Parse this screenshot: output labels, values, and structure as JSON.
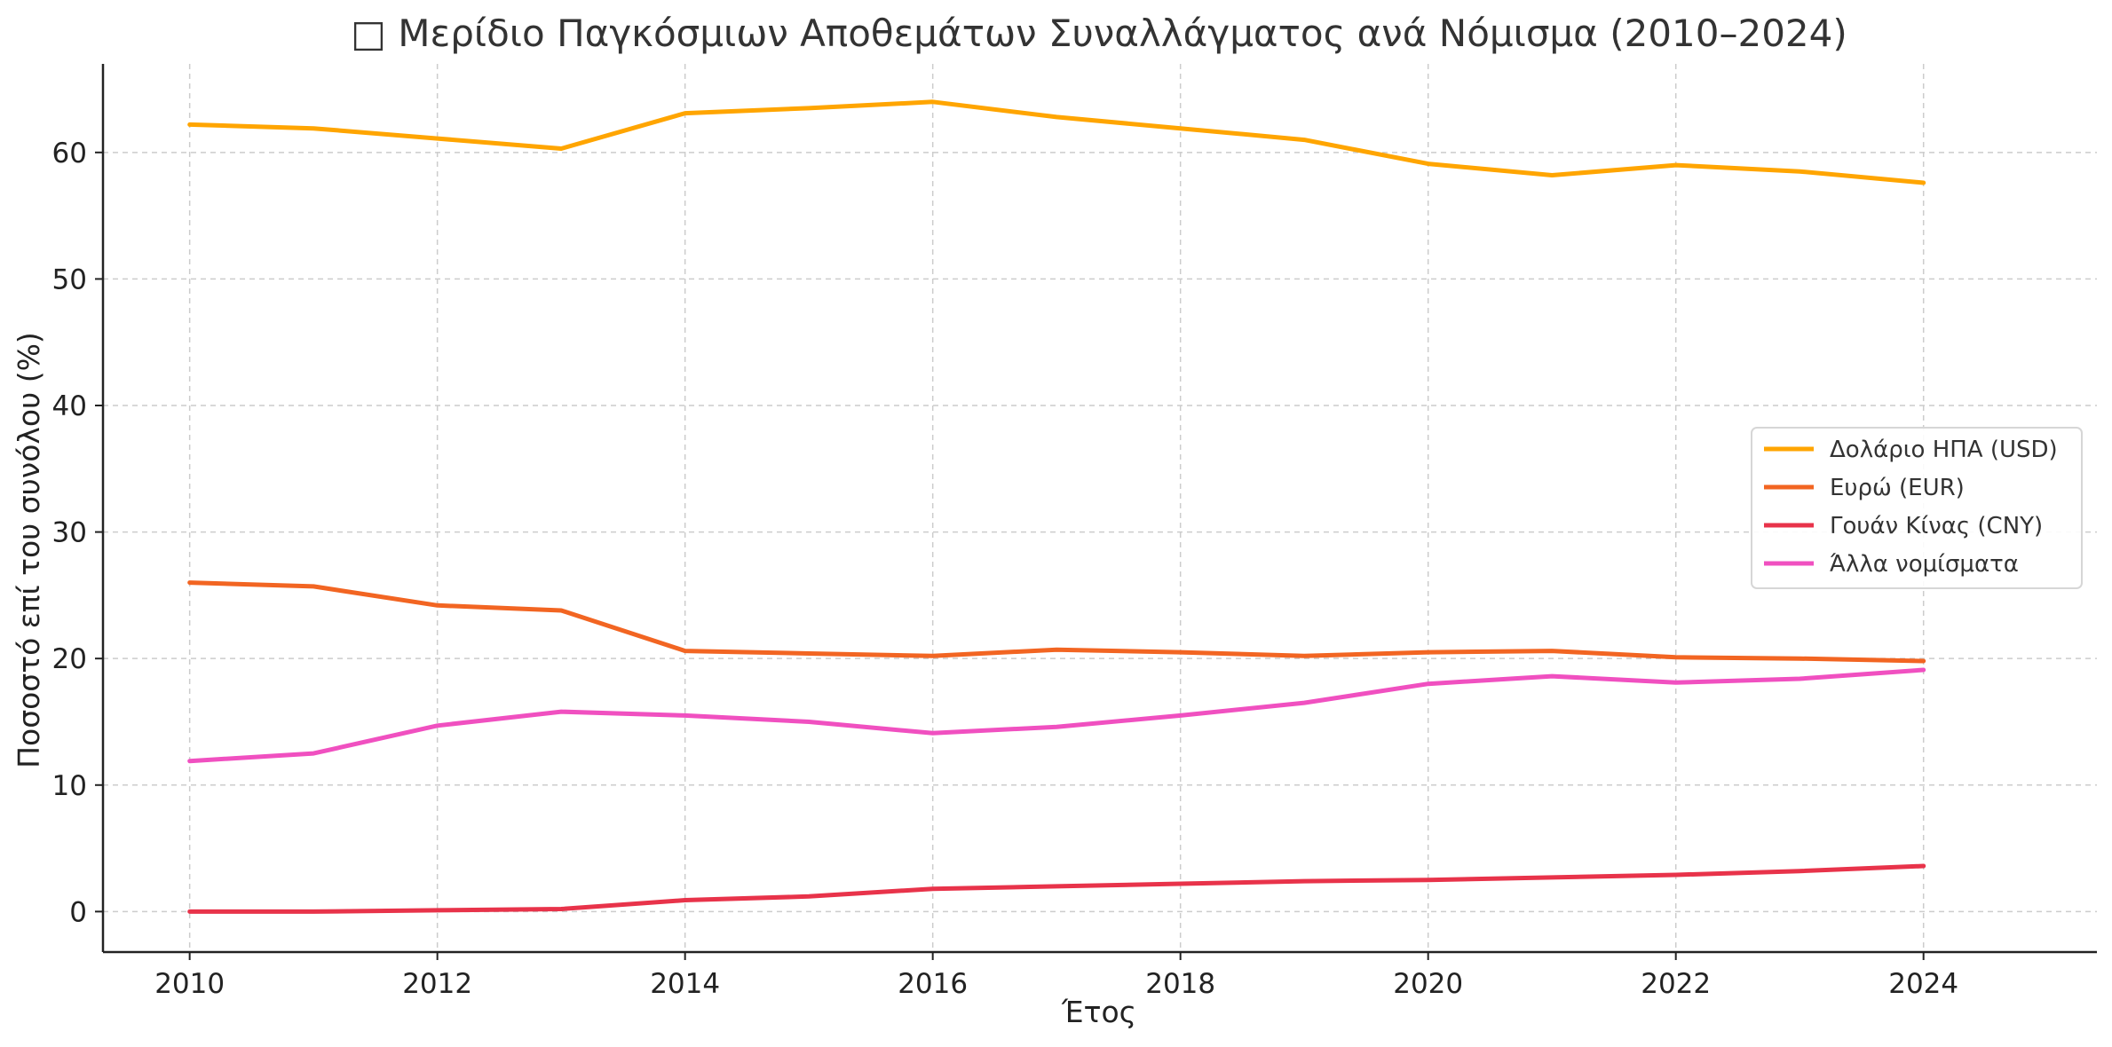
{
  "chart_data": {
    "type": "line",
    "title": "Μερίδιο Παγκόσμιων Αποθεμάτων Συναλλάγματος ανά Νόμισμα (2010–2024)",
    "title_icon": "□",
    "xlabel": "Έτος",
    "ylabel": "Ποσοστό επί του συνόλου (%)",
    "x": [
      2010,
      2011,
      2012,
      2013,
      2014,
      2015,
      2016,
      2017,
      2018,
      2019,
      2020,
      2021,
      2022,
      2023,
      2024
    ],
    "xlim": [
      2009.3,
      2025.4
    ],
    "ylim": [
      -3.2,
      67
    ],
    "xticks": [
      2010,
      2012,
      2014,
      2016,
      2018,
      2020,
      2022,
      2024
    ],
    "yticks": [
      0,
      10,
      20,
      30,
      40,
      50,
      60
    ],
    "grid": true,
    "legend_position": "right",
    "series": [
      {
        "name": "Δολάριο ΗΠΑ (USD)",
        "color": "#FFA500",
        "values": [
          62.2,
          61.9,
          61.1,
          60.3,
          63.1,
          63.5,
          64.0,
          62.8,
          61.9,
          61.0,
          59.1,
          58.2,
          59.0,
          58.5,
          57.6
        ]
      },
      {
        "name": "Ευρώ (EUR)",
        "color": "#F26522",
        "values": [
          26.0,
          25.7,
          24.2,
          23.8,
          20.6,
          20.4,
          20.2,
          20.7,
          20.5,
          20.2,
          20.5,
          20.6,
          20.1,
          20.0,
          19.8
        ]
      },
      {
        "name": "Γουάν Κίνας (CNY)",
        "color": "#E8334A",
        "values": [
          0.0,
          0.0,
          0.1,
          0.2,
          0.9,
          1.2,
          1.8,
          2.0,
          2.2,
          2.4,
          2.5,
          2.7,
          2.9,
          3.2,
          3.6
        ]
      },
      {
        "name": "Άλλα νομίσματα",
        "color": "#F050C0",
        "values": [
          11.9,
          12.5,
          14.7,
          15.8,
          15.5,
          15.0,
          14.1,
          14.6,
          15.5,
          16.5,
          18.0,
          18.6,
          18.1,
          18.4,
          19.1
        ]
      }
    ]
  }
}
